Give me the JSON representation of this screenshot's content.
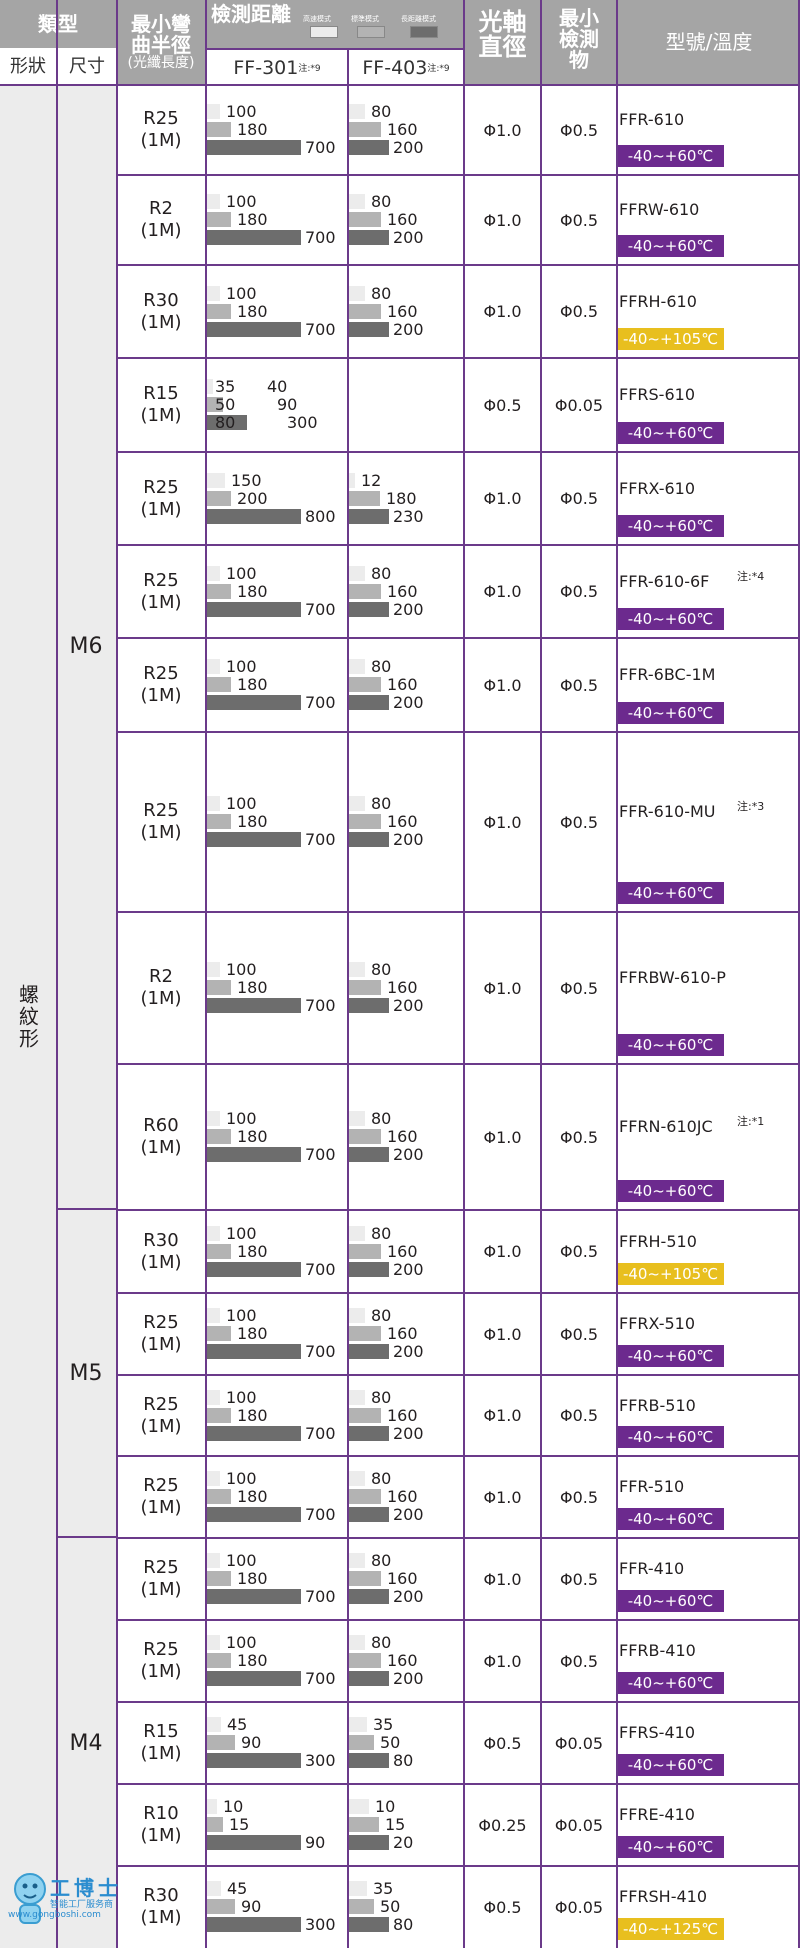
{
  "header": {
    "category": "類型",
    "shape": "形狀",
    "size": "尺寸",
    "min_bend_line1": "最小彎",
    "min_bend_line2": "曲半徑",
    "min_bend_line3": "(光纖長度)",
    "detect_distance": "檢測距離",
    "legend_high_speed": "高速模式",
    "legend_standard": "標準模式",
    "legend_long": "長距離模式",
    "amp_ff301": "FF-301",
    "amp_ff403": "FF-403",
    "note9": "注:*9",
    "axis_diameter_line1": "光軸",
    "axis_diameter_line2": "直徑",
    "min_object_line1": "最小",
    "min_object_line2": "檢測",
    "min_object_line3": "物",
    "model_temp": "型號/溫度"
  },
  "shape_label": "螺紋形",
  "size_groups": [
    "M6",
    "M5",
    "M4"
  ],
  "colors": {
    "purple": "#6c2a8e",
    "yellow": "#e8bf1e",
    "border": "#6b3a8a",
    "header_gray": "#a5a5a5"
  },
  "rows": [
    {
      "radius": "R25",
      "length": "(1M)",
      "ff301": [
        "100",
        "180",
        "700"
      ],
      "ff403": [
        "80",
        "160",
        "200"
      ],
      "axis": "Φ1.0",
      "min_obj": "Φ0.5",
      "model": "FFR-610",
      "note": "",
      "temp": "-40~+60℃",
      "temp_color": "purple"
    },
    {
      "radius": "R2",
      "length": "(1M)",
      "ff301": [
        "100",
        "180",
        "700"
      ],
      "ff403": [
        "80",
        "160",
        "200"
      ],
      "axis": "Φ1.0",
      "min_obj": "Φ0.5",
      "model": "FFRW-610",
      "note": "",
      "temp": "-40~+60℃",
      "temp_color": "purple"
    },
    {
      "radius": "R30",
      "length": "(1M)",
      "ff301": [
        "100",
        "180",
        "700"
      ],
      "ff403": [
        "80",
        "160",
        "200"
      ],
      "axis": "Φ1.0",
      "min_obj": "Φ0.5",
      "model": "FFRH-610",
      "note": "",
      "temp": "-40~+105℃",
      "temp_color": "yellow"
    },
    {
      "radius": "R15",
      "length": "(1M)",
      "ff301": [
        "35",
        "40",
        "50",
        "90",
        "80",
        "300"
      ],
      "ff403": [],
      "axis": "Φ0.5",
      "min_obj": "Φ0.05",
      "model": "FFRS-610",
      "note": "",
      "temp": "-40~+60℃",
      "temp_color": "purple"
    },
    {
      "radius": "R25",
      "length": "(1M)",
      "ff301": [
        "150",
        "200",
        "800"
      ],
      "ff403": [
        "12",
        "180",
        "230"
      ],
      "axis": "Φ1.0",
      "min_obj": "Φ0.5",
      "model": "FFRX-610",
      "note": "",
      "temp": "-40~+60℃",
      "temp_color": "purple"
    },
    {
      "radius": "R25",
      "length": "(1M)",
      "ff301": [
        "100",
        "180",
        "700"
      ],
      "ff403": [
        "80",
        "160",
        "200"
      ],
      "axis": "Φ1.0",
      "min_obj": "Φ0.5",
      "model": "FFR-610-6F",
      "note": "注:*4",
      "temp": "-40~+60℃",
      "temp_color": "purple"
    },
    {
      "radius": "R25",
      "length": "(1M)",
      "ff301": [
        "100",
        "180",
        "700"
      ],
      "ff403": [
        "80",
        "160",
        "200"
      ],
      "axis": "Φ1.0",
      "min_obj": "Φ0.5",
      "model": "FFR-6BC-1M",
      "note": "",
      "temp": "-40~+60℃",
      "temp_color": "purple"
    },
    {
      "radius": "R25",
      "length": "(1M)",
      "ff301": [
        "100",
        "180",
        "700"
      ],
      "ff403": [
        "80",
        "160",
        "200"
      ],
      "axis": "Φ1.0",
      "min_obj": "Φ0.5",
      "model": "FFR-610-MU",
      "note": "注:*3",
      "temp": "-40~+60℃",
      "temp_color": "purple"
    },
    {
      "radius": "R2",
      "length": "(1M)",
      "ff301": [
        "100",
        "180",
        "700"
      ],
      "ff403": [
        "80",
        "160",
        "200"
      ],
      "axis": "Φ1.0",
      "min_obj": "Φ0.5",
      "model": "FFRBW-610-P",
      "note": "",
      "temp": "-40~+60℃",
      "temp_color": "purple"
    },
    {
      "radius": "R60",
      "length": "(1M)",
      "ff301": [
        "100",
        "180",
        "700"
      ],
      "ff403": [
        "80",
        "160",
        "200"
      ],
      "axis": "Φ1.0",
      "min_obj": "Φ0.5",
      "model": "FFRN-610JC",
      "note": "注:*1",
      "temp": "-40~+60℃",
      "temp_color": "purple"
    },
    {
      "radius": "R30",
      "length": "(1M)",
      "ff301": [
        "100",
        "180",
        "700"
      ],
      "ff403": [
        "80",
        "160",
        "200"
      ],
      "axis": "Φ1.0",
      "min_obj": "Φ0.5",
      "model": "FFRH-510",
      "note": "",
      "temp": "-40~+105℃",
      "temp_color": "yellow"
    },
    {
      "radius": "R25",
      "length": "(1M)",
      "ff301": [
        "100",
        "180",
        "700"
      ],
      "ff403": [
        "80",
        "160",
        "200"
      ],
      "axis": "Φ1.0",
      "min_obj": "Φ0.5",
      "model": "FFRX-510",
      "note": "",
      "temp": "-40~+60℃",
      "temp_color": "purple"
    },
    {
      "radius": "R25",
      "length": "(1M)",
      "ff301": [
        "100",
        "180",
        "700"
      ],
      "ff403": [
        "80",
        "160",
        "200"
      ],
      "axis": "Φ1.0",
      "min_obj": "Φ0.5",
      "model": "FFRB-510",
      "note": "",
      "temp": "-40~+60℃",
      "temp_color": "purple"
    },
    {
      "radius": "R25",
      "length": "(1M)",
      "ff301": [
        "100",
        "180",
        "700"
      ],
      "ff403": [
        "80",
        "160",
        "200"
      ],
      "axis": "Φ1.0",
      "min_obj": "Φ0.5",
      "model": "FFR-510",
      "note": "",
      "temp": "-40~+60℃",
      "temp_color": "purple"
    },
    {
      "radius": "R25",
      "length": "(1M)",
      "ff301": [
        "100",
        "180",
        "700"
      ],
      "ff403": [
        "80",
        "160",
        "200"
      ],
      "axis": "Φ1.0",
      "min_obj": "Φ0.5",
      "model": "FFR-410",
      "note": "",
      "temp": "-40~+60℃",
      "temp_color": "purple"
    },
    {
      "radius": "R25",
      "length": "(1M)",
      "ff301": [
        "100",
        "180",
        "700"
      ],
      "ff403": [
        "80",
        "160",
        "200"
      ],
      "axis": "Φ1.0",
      "min_obj": "Φ0.5",
      "model": "FFRB-410",
      "note": "",
      "temp": "-40~+60℃",
      "temp_color": "purple"
    },
    {
      "radius": "R15",
      "length": "(1M)",
      "ff301": [
        "45",
        "90",
        "300"
      ],
      "ff403": [
        "35",
        "50",
        "80"
      ],
      "axis": "Φ0.5",
      "min_obj": "Φ0.05",
      "model": "FFRS-410",
      "note": "",
      "temp": "-40~+60℃",
      "temp_color": "purple"
    },
    {
      "radius": "R10",
      "length": "(1M)",
      "ff301": [
        "10",
        "15",
        "90"
      ],
      "ff403": [
        "10",
        "15",
        "20"
      ],
      "axis": "Φ0.25",
      "min_obj": "Φ0.05",
      "model": "FFRE-410",
      "note": "",
      "temp": "-40~+60℃",
      "temp_color": "purple"
    },
    {
      "radius": "R30",
      "length": "(1M)",
      "ff301": [
        "45",
        "90",
        "300"
      ],
      "ff403": [
        "35",
        "50",
        "80"
      ],
      "axis": "Φ0.5",
      "min_obj": "Φ0.05",
      "model": "FFRSH-410",
      "note": "",
      "temp": "-40~+125℃",
      "temp_color": "yellow"
    }
  ],
  "logo": {
    "name": "工博士",
    "tagline": "智能工厂服务商",
    "url": "www.gongboshi.com"
  }
}
